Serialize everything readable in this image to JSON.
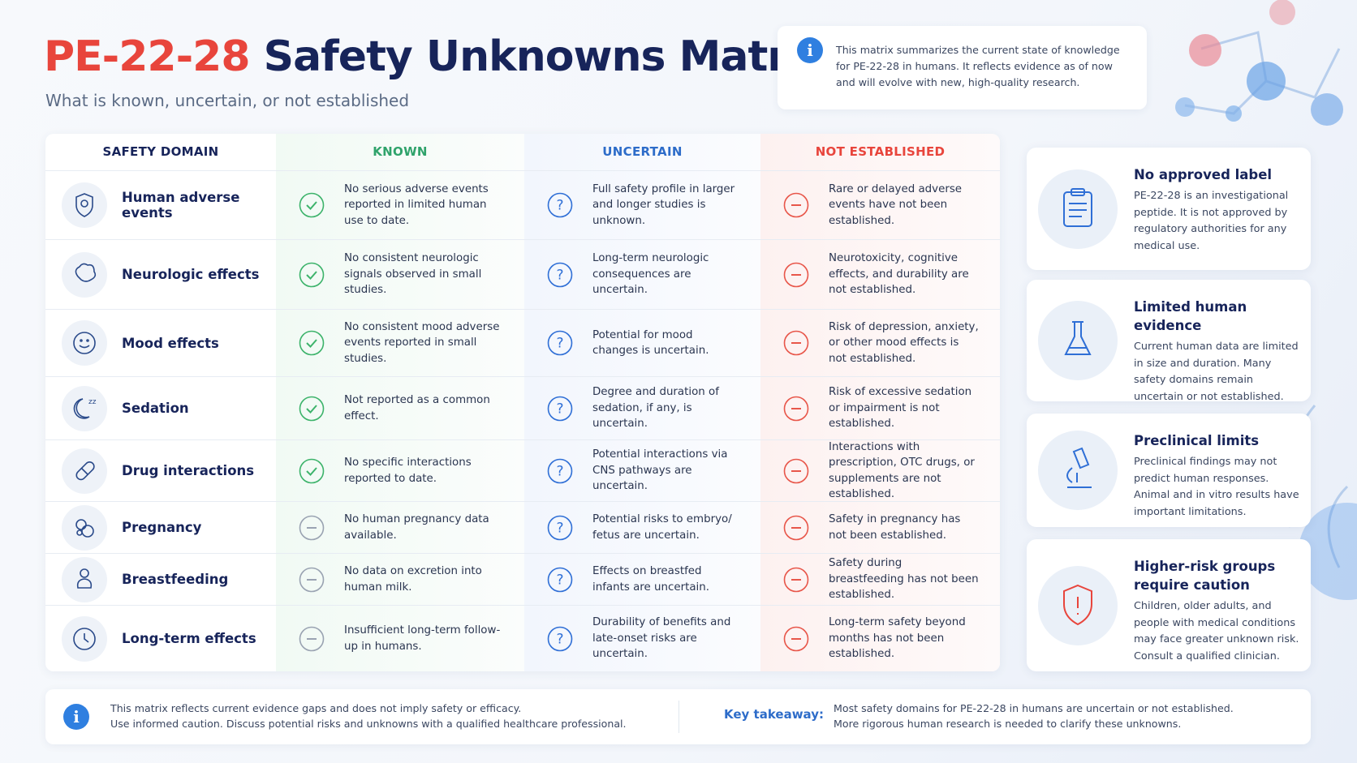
{
  "header": {
    "title_code": "PE-22-28",
    "title_main": "Safety Unknowns Matrix",
    "subtitle": "What is known, uncertain, or not established",
    "note": "This matrix summarizes the current state of knowledge for PE-22-28 in humans. It reflects evidence as of now and will evolve with new, high-quality research."
  },
  "table": {
    "columns": [
      "SAFETY DOMAIN",
      "KNOWN",
      "UNCERTAIN",
      "NOT ESTABLISHED"
    ],
    "rows": [
      [
        "Human adverse events",
        "No serious adverse events reported in limited human use to date.",
        "Full safety profile in larger and longer studies is unknown.",
        "Rare or delayed adverse events have not been established."
      ],
      [
        "Neurologic effects",
        "No consistent neurologic signals observed in small studies.",
        "Long-term neurologic consequences are uncertain.",
        "Neurotoxicity, cognitive effects, and durability are not established."
      ],
      [
        "Mood effects",
        "No consistent mood adverse events reported in small studies.",
        "Potential for mood changes is uncertain.",
        "Risk of depression, anxiety, or other mood effects is not established."
      ],
      [
        "Sedation",
        "Not reported as a common effect.",
        "Degree and duration of sedation, if any, is uncertain.",
        "Risk of excessive sedation or impairment is not established."
      ],
      [
        "Drug interactions",
        "No specific interactions reported to date.",
        "Potential interactions via CNS pathways are uncertain.",
        "Interactions with prescription, OTC drugs, or supplements are not established."
      ],
      [
        "Pregnancy",
        "No human pregnancy data available.",
        "Potential risks to embryo/ fetus are uncertain.",
        "Safety in pregnancy has not been established."
      ],
      [
        "Breastfeeding",
        "No data on excretion into human milk.",
        "Effects on breastfed infants are uncertain.",
        "Safety during breastfeeding has not been established."
      ],
      [
        "Long-term effects",
        "Insufficient long-term follow-up in humans.",
        "Durability of benefits and late-onset risks are uncertain.",
        "Long-term safety beyond months has not been established."
      ]
    ]
  },
  "cards": [
    {
      "title": "No approved label",
      "text": "PE-22-28 is an investigational peptide. It is not approved by regulatory authorities for any medical use."
    },
    {
      "title": "Limited human evidence",
      "text": "Current human data are limited in size and duration. Many safety domains remain uncertain or not established."
    },
    {
      "title": "Preclinical limits",
      "text": "Preclinical findings may not predict human responses. Animal and in vitro results have important limitations."
    },
    {
      "title": "Higher-risk groups require caution",
      "text": "Children, older adults, and people with medical conditions may face greater unknown risk. Consult a qualified clinician."
    }
  ],
  "footer": {
    "note_lines": [
      "This matrix reflects current evidence gaps and does not imply safety or efficacy.",
      "Use informed caution. Discuss potential risks and unknowns with a qualified healthcare professional."
    ],
    "takeaway_label": "Key takeaway:",
    "takeaway_lines": [
      "Most safety domains for PE-22-28 in humans are uncertain or not established.",
      "More rigorous human research is needed to clarify these unknowns."
    ]
  }
}
